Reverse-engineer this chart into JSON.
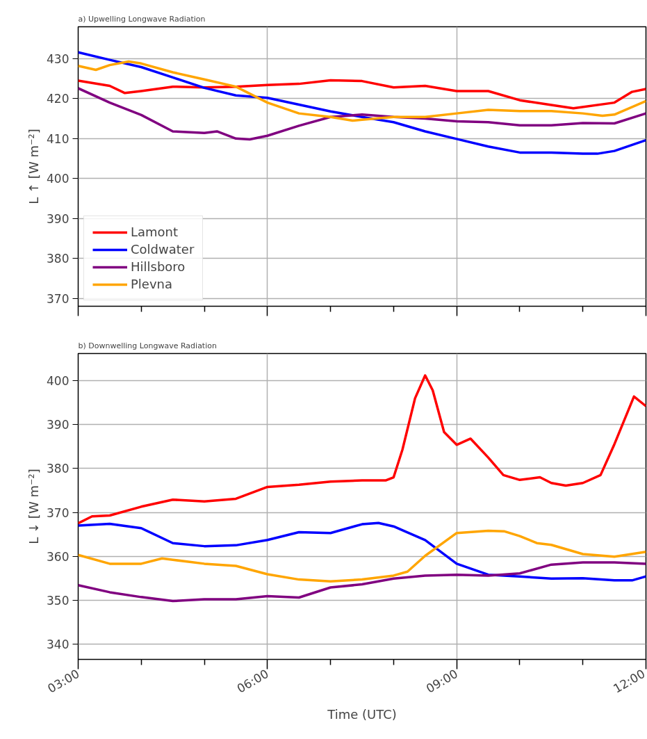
{
  "chart_data": [
    {
      "type": "line",
      "title": "a) Upwelling Longwave Radiation",
      "ylabel": "L ↑ [W m⁻²]",
      "xlim": [
        3,
        12
      ],
      "ylim": [
        368,
        438
      ],
      "yticks": [
        370,
        380,
        390,
        400,
        410,
        420,
        430
      ],
      "xticks": [
        3,
        {
          "value": 4,
          "label": null
        },
        {
          "value": 5,
          "label": null
        },
        6,
        {
          "value": 7,
          "label": null
        },
        {
          "value": 8,
          "label": null
        },
        9,
        {
          "value": 10,
          "label": null
        },
        {
          "value": 11,
          "label": null
        },
        12
      ],
      "grid": true,
      "legend": "bottom left",
      "tick_labels": "y",
      "line_style": "solid",
      "marker": "none",
      "series": [
        {
          "name": "Lamont",
          "color": "#ff0000",
          "x": [
            3,
            3.5,
            3.74,
            4,
            4.5,
            5,
            5.5,
            6,
            6.5,
            7,
            7.5,
            8,
            8.5,
            9,
            9.5,
            10,
            10.5,
            10.85,
            11.5,
            11.78,
            12
          ],
          "values": [
            424.5,
            423.2,
            421.4,
            421.9,
            423,
            422.8,
            423,
            423.4,
            423.7,
            424.6,
            424.4,
            422.8,
            423.2,
            421.9,
            421.9,
            419.6,
            418.4,
            417.6,
            419,
            421.7,
            422.4
          ]
        },
        {
          "name": "Coldwater",
          "color": "#0000ff",
          "x": [
            3,
            3.5,
            4,
            4.5,
            5,
            5.5,
            6,
            6.5,
            7,
            7.5,
            8,
            8.5,
            9,
            9.5,
            10,
            10.5,
            11,
            11.23,
            11.5,
            12
          ],
          "values": [
            431.6,
            429.7,
            427.9,
            425.3,
            422.7,
            420.8,
            420.2,
            418.5,
            416.8,
            415.4,
            414.1,
            411.8,
            409.9,
            408,
            406.5,
            406.5,
            406.2,
            406.2,
            406.9,
            409.6
          ]
        },
        {
          "name": "Hillsboro",
          "color": "#800080",
          "x": [
            3,
            3.5,
            4,
            4.5,
            5,
            5.2,
            5.5,
            5.72,
            6,
            6.5,
            7,
            7.5,
            8,
            8.5,
            9,
            9.5,
            10,
            10.5,
            11,
            11.5,
            12
          ],
          "values": [
            422.6,
            419,
            415.9,
            411.8,
            411.4,
            411.8,
            410,
            409.8,
            410.7,
            413.2,
            415.4,
            416,
            415.4,
            415,
            414.3,
            414.1,
            413.3,
            413.3,
            413.9,
            413.8,
            416.3
          ]
        },
        {
          "name": "Plevna",
          "color": "#ffa500",
          "x": [
            3,
            3.28,
            3.5,
            3.8,
            4,
            4.5,
            5,
            5.5,
            6,
            6.5,
            7,
            7.35,
            7.5,
            8,
            8.5,
            9,
            9.5,
            10,
            10.5,
            11,
            11.31,
            11.5,
            12
          ],
          "values": [
            428.2,
            427.2,
            428.4,
            429.3,
            428.8,
            426.6,
            424.8,
            423,
            419,
            416.3,
            415.4,
            414.5,
            414.7,
            415.4,
            415.4,
            416.3,
            417.2,
            416.9,
            416.9,
            416.3,
            415.7,
            416,
            419.4
          ]
        }
      ]
    },
    {
      "type": "line",
      "title": "b) Downwelling Longwave Radiation",
      "ylabel": "L ↓ [W m⁻²]",
      "xlabel": "Time (UTC)",
      "xlim": [
        3,
        12
      ],
      "ylim": [
        336.5,
        406.2
      ],
      "yticks": [
        340,
        350,
        360,
        370,
        380,
        390,
        400
      ],
      "xticks": [
        {
          "value": 3,
          "label": "03:00"
        },
        {
          "value": 4,
          "label": null
        },
        {
          "value": 5,
          "label": null
        },
        {
          "value": 6,
          "label": "06:00"
        },
        {
          "value": 7,
          "label": null
        },
        {
          "value": 8,
          "label": null
        },
        {
          "value": 9,
          "label": "09:00"
        },
        {
          "value": 10,
          "label": null
        },
        {
          "value": 11,
          "label": null
        },
        {
          "value": 12,
          "label": "12:00"
        }
      ],
      "grid": true,
      "line_style": "solid",
      "marker": "none",
      "series": [
        {
          "color": "#ff0000",
          "x": [
            3,
            3.22,
            3.5,
            4,
            4.5,
            5,
            5.5,
            6,
            6.5,
            7,
            7.5,
            7.88,
            8,
            8.14,
            8.34,
            8.5,
            8.62,
            8.8,
            9,
            9.22,
            9.5,
            9.74,
            10,
            10.32,
            10.5,
            10.73,
            11,
            11.28,
            11.49,
            11.81,
            12
          ],
          "values": [
            367.5,
            369.1,
            369.3,
            371.3,
            372.9,
            372.5,
            373.1,
            375.8,
            376.3,
            377,
            377.3,
            377.3,
            378,
            384.3,
            396,
            401.2,
            397.8,
            388.3,
            385.4,
            386.8,
            382.5,
            378.5,
            377.4,
            378,
            376.7,
            376.1,
            376.7,
            378.5,
            385.2,
            396.4,
            394.2
          ]
        },
        {
          "color": "#0000ff",
          "x": [
            3,
            3.5,
            4,
            4.5,
            5,
            5.5,
            6,
            6.5,
            7,
            7.5,
            7.76,
            8,
            8.5,
            9,
            9.5,
            10,
            10.5,
            11,
            11.5,
            11.78,
            12
          ],
          "values": [
            367,
            367.4,
            366.4,
            363,
            362.3,
            362.5,
            363.7,
            365.5,
            365.3,
            367.3,
            367.6,
            366.8,
            363.7,
            358.3,
            355.8,
            355.4,
            354.9,
            355,
            354.5,
            354.5,
            355.4
          ]
        },
        {
          "color": "#800080",
          "x": [
            3,
            3.5,
            4,
            4.5,
            5,
            5.5,
            6,
            6.5,
            7,
            7.5,
            8,
            8.5,
            9,
            9.5,
            10,
            10.5,
            11,
            11.5,
            12
          ],
          "values": [
            353.4,
            351.8,
            350.7,
            349.8,
            350.2,
            350.2,
            350.9,
            350.6,
            352.9,
            353.6,
            354.9,
            355.6,
            355.8,
            355.6,
            356.1,
            358.1,
            358.6,
            358.6,
            358.3
          ]
        },
        {
          "color": "#ffa500",
          "x": [
            3,
            3.5,
            4,
            4.33,
            4.5,
            5,
            5.5,
            6,
            6.5,
            7,
            7.5,
            8,
            8.22,
            8.5,
            9,
            9.5,
            9.75,
            10,
            10.27,
            10.5,
            11,
            11.5,
            12
          ],
          "values": [
            360.3,
            358.3,
            358.3,
            359.5,
            359.2,
            358.3,
            357.8,
            355.9,
            354.7,
            354.3,
            354.7,
            355.6,
            356.5,
            360.1,
            365.3,
            365.8,
            365.7,
            364.6,
            363,
            362.6,
            360.5,
            359.9,
            361
          ]
        }
      ]
    }
  ]
}
